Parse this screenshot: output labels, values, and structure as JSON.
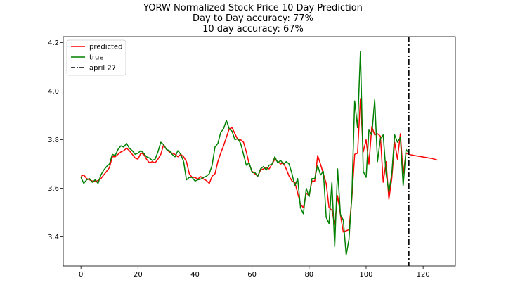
{
  "chart_data": {
    "type": "line",
    "title": "YORW Normalized Stock Price 10 Day Prediction",
    "subtitle_lines": [
      "Day to Day accuracy: 77%",
      "10 day accuracy: 67%"
    ],
    "xlabel": "",
    "ylabel": "",
    "xlim": [
      -6.2,
      131.3
    ],
    "ylim": [
      3.28,
      4.225
    ],
    "x_ticks": [
      0,
      20,
      40,
      60,
      80,
      100,
      120
    ],
    "y_ticks": [
      3.4,
      3.6,
      3.8,
      4.0,
      4.2
    ],
    "y_tick_labels": [
      "3.4",
      "3.6",
      "3.8",
      "4.0",
      "4.2"
    ],
    "grid": false,
    "legend_position": "top-left",
    "vline": {
      "x": 115,
      "label": "april 27",
      "color": "#000000",
      "style": "dash-dot"
    },
    "series": [
      {
        "name": "predicted",
        "color": "#ff0000",
        "x": [
          0,
          1,
          2,
          3,
          4,
          5,
          6,
          7,
          8,
          9,
          10,
          11,
          12,
          13,
          14,
          15,
          16,
          17,
          18,
          19,
          20,
          21,
          22,
          23,
          24,
          25,
          26,
          27,
          28,
          29,
          30,
          31,
          32,
          33,
          34,
          35,
          36,
          37,
          38,
          39,
          40,
          41,
          42,
          43,
          44,
          45,
          46,
          47,
          48,
          49,
          50,
          51,
          52,
          53,
          54,
          55,
          56,
          57,
          58,
          59,
          60,
          61,
          62,
          63,
          64,
          65,
          66,
          67,
          68,
          69,
          70,
          71,
          72,
          73,
          74,
          75,
          76,
          77,
          78,
          79,
          80,
          81,
          82,
          83,
          84,
          85,
          86,
          87,
          88,
          89,
          90,
          91,
          92,
          93,
          94,
          95,
          96,
          97,
          98,
          99,
          100,
          101,
          102,
          103,
          104,
          105,
          106,
          107,
          108,
          109,
          110,
          111,
          112,
          113,
          114,
          115,
          116,
          117,
          118,
          119,
          120,
          121,
          122,
          123,
          124,
          125
        ],
        "values": [
          3.65,
          3.655,
          3.64,
          3.635,
          3.63,
          3.628,
          3.632,
          3.64,
          3.655,
          3.67,
          3.685,
          3.73,
          3.73,
          3.74,
          3.75,
          3.755,
          3.765,
          3.755,
          3.74,
          3.725,
          3.72,
          3.745,
          3.74,
          3.72,
          3.705,
          3.71,
          3.705,
          3.72,
          3.74,
          3.78,
          3.76,
          3.75,
          3.745,
          3.74,
          3.73,
          3.74,
          3.73,
          3.71,
          3.66,
          3.645,
          3.645,
          3.638,
          3.648,
          3.638,
          3.632,
          3.62,
          3.65,
          3.66,
          3.71,
          3.745,
          3.775,
          3.81,
          3.845,
          3.85,
          3.825,
          3.8,
          3.8,
          3.79,
          3.75,
          3.7,
          3.67,
          3.66,
          3.65,
          3.675,
          3.68,
          3.685,
          3.68,
          3.7,
          3.72,
          3.71,
          3.7,
          3.705,
          3.68,
          3.65,
          3.63,
          3.625,
          3.58,
          3.535,
          3.52,
          3.58,
          3.57,
          3.63,
          3.63,
          3.735,
          3.7,
          3.66,
          3.62,
          3.52,
          3.51,
          3.45,
          3.57,
          3.49,
          3.42,
          3.425,
          3.43,
          3.56,
          3.74,
          3.745,
          3.97,
          3.75,
          3.8,
          3.7,
          3.855,
          3.82,
          3.825,
          3.815,
          3.625,
          3.71,
          3.555,
          3.64,
          3.79,
          3.72,
          3.825,
          3.66,
          3.745,
          3.74,
          3.737,
          3.735,
          3.733,
          3.731,
          3.729,
          3.727,
          3.725,
          3.723,
          3.72,
          3.716
        ]
      },
      {
        "name": "true",
        "color": "#008000",
        "x": [
          0,
          1,
          2,
          3,
          4,
          5,
          6,
          7,
          8,
          9,
          10,
          11,
          12,
          13,
          14,
          15,
          16,
          17,
          18,
          19,
          20,
          21,
          22,
          23,
          24,
          25,
          26,
          27,
          28,
          29,
          30,
          31,
          32,
          33,
          34,
          35,
          36,
          37,
          38,
          39,
          40,
          41,
          42,
          43,
          44,
          45,
          46,
          47,
          48,
          49,
          50,
          51,
          52,
          53,
          54,
          55,
          56,
          57,
          58,
          59,
          60,
          61,
          62,
          63,
          64,
          65,
          66,
          67,
          68,
          69,
          70,
          71,
          72,
          73,
          74,
          75,
          76,
          77,
          78,
          79,
          80,
          81,
          82,
          83,
          84,
          85,
          86,
          87,
          88,
          89,
          90,
          91,
          92,
          93,
          94,
          95,
          96,
          97,
          98,
          99,
          100,
          101,
          102,
          103,
          104,
          105,
          106,
          107,
          108,
          109,
          110,
          111,
          112,
          113,
          114,
          115
        ],
        "values": [
          3.645,
          3.62,
          3.635,
          3.64,
          3.625,
          3.635,
          3.62,
          3.655,
          3.675,
          3.69,
          3.7,
          3.74,
          3.735,
          3.76,
          3.775,
          3.77,
          3.785,
          3.765,
          3.755,
          3.74,
          3.745,
          3.755,
          3.745,
          3.73,
          3.725,
          3.715,
          3.72,
          3.75,
          3.79,
          3.78,
          3.76,
          3.755,
          3.74,
          3.73,
          3.755,
          3.74,
          3.71,
          3.635,
          3.645,
          3.645,
          3.63,
          3.635,
          3.638,
          3.645,
          3.65,
          3.66,
          3.695,
          3.77,
          3.785,
          3.83,
          3.845,
          3.88,
          3.845,
          3.835,
          3.8,
          3.805,
          3.785,
          3.74,
          3.695,
          3.705,
          3.665,
          3.665,
          3.65,
          3.68,
          3.69,
          3.675,
          3.695,
          3.7,
          3.73,
          3.705,
          3.715,
          3.7,
          3.71,
          3.7,
          3.66,
          3.61,
          3.64,
          3.52,
          3.495,
          3.6,
          3.565,
          3.64,
          3.64,
          3.695,
          3.655,
          3.67,
          3.48,
          3.455,
          3.625,
          3.36,
          3.68,
          3.49,
          3.47,
          3.325,
          3.39,
          3.57,
          3.96,
          3.85,
          4.165,
          3.67,
          3.645,
          3.84,
          3.82,
          3.965,
          3.71,
          3.805,
          3.82,
          3.66,
          3.585,
          3.66,
          3.82,
          3.79,
          3.81,
          3.61,
          3.76,
          3.745
        ]
      }
    ]
  }
}
